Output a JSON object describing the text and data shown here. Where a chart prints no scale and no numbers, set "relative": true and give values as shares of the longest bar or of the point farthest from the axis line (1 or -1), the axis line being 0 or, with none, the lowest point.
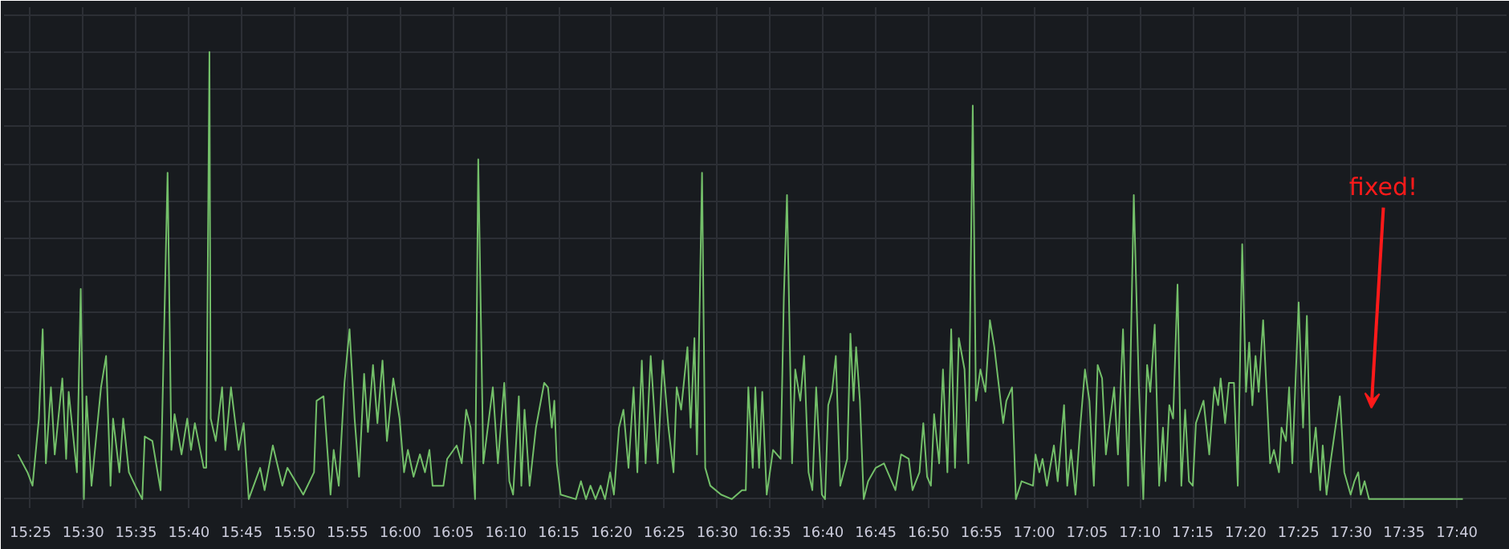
{
  "chart_data": {
    "type": "line",
    "relative": true,
    "grid": true,
    "marker": "none",
    "line_style": "solid",
    "xlim": [
      15.375,
      17.745
    ],
    "xticks": [
      {
        "value": 15.41667,
        "label": "15:25"
      },
      {
        "value": 15.5,
        "label": "15:30"
      },
      {
        "value": 15.58333,
        "label": "15:35"
      },
      {
        "value": 15.66667,
        "label": "15:40"
      },
      {
        "value": 15.75,
        "label": "15:45"
      },
      {
        "value": 15.83333,
        "label": "15:50"
      },
      {
        "value": 15.91667,
        "label": "15:55"
      },
      {
        "value": 16.0,
        "label": "16:00"
      },
      {
        "value": 16.08333,
        "label": "16:05"
      },
      {
        "value": 16.16667,
        "label": "16:10"
      },
      {
        "value": 16.25,
        "label": "16:15"
      },
      {
        "value": 16.33333,
        "label": "16:20"
      },
      {
        "value": 16.41667,
        "label": "16:25"
      },
      {
        "value": 16.5,
        "label": "16:30"
      },
      {
        "value": 16.58333,
        "label": "16:35"
      },
      {
        "value": 16.66667,
        "label": "16:40"
      },
      {
        "value": 16.75,
        "label": "16:45"
      },
      {
        "value": 16.83333,
        "label": "16:50"
      },
      {
        "value": 16.91667,
        "label": "16:55"
      },
      {
        "value": 17.0,
        "label": "17:00"
      },
      {
        "value": 17.08333,
        "label": "17:05"
      },
      {
        "value": 17.16667,
        "label": "17:10"
      },
      {
        "value": 17.25,
        "label": "17:15"
      },
      {
        "value": 17.33333,
        "label": "17:20"
      },
      {
        "value": 17.41667,
        "label": "17:25"
      },
      {
        "value": 17.5,
        "label": "17:30"
      },
      {
        "value": 17.58333,
        "label": "17:35"
      },
      {
        "value": 17.66667,
        "label": "17:40"
      }
    ],
    "annotations": [
      "fixed!"
    ],
    "series": [
      {
        "color": "#73bf69",
        "x": [
          15.397,
          15.412,
          15.42,
          15.43,
          15.436,
          15.441,
          15.449,
          15.455,
          15.467,
          15.473,
          15.477,
          15.49,
          15.496,
          15.501,
          15.505,
          15.513,
          15.528,
          15.536,
          15.543,
          15.547,
          15.557,
          15.563,
          15.572,
          15.582,
          15.593,
          15.597,
          15.609,
          15.622,
          15.633,
          15.639,
          15.644,
          15.655,
          15.664,
          15.67,
          15.676,
          15.69,
          15.694,
          15.699,
          15.701,
          15.709,
          15.719,
          15.724,
          15.733,
          15.745,
          15.753,
          15.761,
          15.779,
          15.786,
          15.799,
          15.814,
          15.822,
          15.847,
          15.864,
          15.868,
          15.879,
          15.89,
          15.895,
          15.903,
          15.912,
          15.92,
          15.928,
          15.935,
          15.943,
          15.949,
          15.957,
          15.964,
          15.972,
          15.979,
          15.989,
          15.999,
          16.006,
          16.012,
          16.021,
          16.031,
          16.039,
          16.046,
          16.051,
          16.068,
          16.074,
          16.089,
          16.097,
          16.104,
          16.111,
          16.118,
          16.123,
          16.131,
          16.146,
          16.154,
          16.164,
          16.172,
          16.178,
          16.187,
          16.191,
          16.196,
          16.204,
          16.214,
          16.227,
          16.233,
          16.239,
          16.243,
          16.247,
          16.253,
          16.277,
          16.285,
          16.293,
          16.3,
          16.308,
          16.316,
          16.323,
          16.331,
          16.337,
          16.345,
          16.352,
          16.36,
          16.368,
          16.374,
          16.381,
          16.387,
          16.395,
          16.406,
          16.414,
          16.423,
          16.431,
          16.436,
          16.443,
          16.453,
          16.458,
          16.464,
          16.468,
          16.476,
          16.481,
          16.489,
          16.506,
          16.523,
          16.539,
          16.545,
          16.549,
          16.556,
          16.56,
          16.566,
          16.571,
          16.578,
          16.588,
          16.6,
          16.605,
          16.61,
          16.618,
          16.623,
          16.631,
          16.637,
          16.644,
          16.65,
          16.656,
          16.665,
          16.67,
          16.675,
          16.681,
          16.687,
          16.694,
          16.705,
          16.71,
          16.715,
          16.719,
          16.725,
          16.731,
          16.738,
          16.75,
          16.763,
          16.781,
          16.79,
          16.802,
          16.808,
          16.819,
          16.825,
          16.831,
          16.837,
          16.842,
          16.85,
          16.856,
          16.863,
          16.869,
          16.875,
          16.881,
          16.89,
          16.896,
          16.903,
          16.908,
          16.915,
          16.923,
          16.93,
          16.937,
          16.951,
          16.956,
          16.965,
          16.971,
          16.98,
          16.998,
          17.002,
          17.008,
          17.013,
          17.02,
          17.031,
          17.037,
          17.047,
          17.052,
          17.058,
          17.065,
          17.073,
          17.08,
          17.087,
          17.094,
          17.1,
          17.107,
          17.113,
          17.119,
          17.126,
          17.132,
          17.14,
          17.148,
          17.157,
          17.165,
          17.172,
          17.178,
          17.183,
          17.19,
          17.197,
          17.203,
          17.207,
          17.213,
          17.219,
          17.226,
          17.232,
          17.238,
          17.244,
          17.25,
          17.255,
          17.267,
          17.276,
          17.284,
          17.29,
          17.294,
          17.301,
          17.307,
          17.315,
          17.321,
          17.328,
          17.334,
          17.339,
          17.344,
          17.349,
          17.354,
          17.361,
          17.372,
          17.378,
          17.386,
          17.39,
          17.397,
          17.402,
          17.407,
          17.417,
          17.424,
          17.43,
          17.436,
          17.444,
          17.451,
          17.455,
          17.461,
          17.467,
          17.482,
          17.489,
          17.499,
          17.505,
          17.511,
          17.515,
          17.521,
          17.528,
          17.676
        ],
        "values": [
          0.1,
          0.06,
          0.03,
          0.18,
          0.38,
          0.08,
          0.25,
          0.1,
          0.27,
          0.09,
          0.24,
          0.06,
          0.47,
          0.0,
          0.23,
          0.03,
          0.25,
          0.32,
          0.03,
          0.18,
          0.06,
          0.18,
          0.06,
          0.03,
          0.0,
          0.14,
          0.13,
          0.02,
          0.73,
          0.11,
          0.19,
          0.1,
          0.18,
          0.11,
          0.17,
          0.07,
          0.07,
          1.0,
          0.18,
          0.13,
          0.25,
          0.11,
          0.25,
          0.11,
          0.17,
          0.0,
          0.07,
          0.02,
          0.12,
          0.03,
          0.07,
          0.01,
          0.06,
          0.22,
          0.23,
          0.01,
          0.11,
          0.03,
          0.26,
          0.38,
          0.18,
          0.05,
          0.28,
          0.15,
          0.3,
          0.17,
          0.31,
          0.13,
          0.27,
          0.18,
          0.06,
          0.11,
          0.05,
          0.1,
          0.06,
          0.11,
          0.03,
          0.03,
          0.09,
          0.12,
          0.08,
          0.2,
          0.16,
          0.0,
          0.76,
          0.08,
          0.25,
          0.08,
          0.26,
          0.04,
          0.01,
          0.23,
          0.03,
          0.2,
          0.03,
          0.16,
          0.26,
          0.25,
          0.16,
          0.22,
          0.08,
          0.01,
          0.0,
          0.04,
          0.0,
          0.03,
          0.0,
          0.03,
          0.0,
          0.06,
          0.01,
          0.16,
          0.2,
          0.07,
          0.25,
          0.06,
          0.31,
          0.08,
          0.32,
          0.08,
          0.31,
          0.16,
          0.06,
          0.25,
          0.2,
          0.34,
          0.16,
          0.36,
          0.1,
          0.73,
          0.07,
          0.03,
          0.01,
          0.0,
          0.02,
          0.02,
          0.25,
          0.07,
          0.25,
          0.07,
          0.24,
          0.01,
          0.11,
          0.09,
          0.45,
          0.68,
          0.08,
          0.29,
          0.22,
          0.32,
          0.06,
          0.02,
          0.25,
          0.01,
          0.0,
          0.21,
          0.24,
          0.32,
          0.03,
          0.09,
          0.37,
          0.22,
          0.34,
          0.22,
          0.0,
          0.04,
          0.07,
          0.08,
          0.02,
          0.1,
          0.09,
          0.02,
          0.06,
          0.17,
          0.05,
          0.03,
          0.19,
          0.08,
          0.29,
          0.06,
          0.38,
          0.07,
          0.36,
          0.29,
          0.08,
          0.88,
          0.22,
          0.29,
          0.24,
          0.4,
          0.34,
          0.17,
          0.22,
          0.25,
          0.0,
          0.04,
          0.03,
          0.1,
          0.06,
          0.09,
          0.03,
          0.12,
          0.04,
          0.21,
          0.03,
          0.11,
          0.01,
          0.17,
          0.29,
          0.22,
          0.03,
          0.3,
          0.27,
          0.1,
          0.17,
          0.25,
          0.1,
          0.38,
          0.03,
          0.68,
          0.25,
          0.0,
          0.3,
          0.24,
          0.39,
          0.03,
          0.16,
          0.04,
          0.21,
          0.18,
          0.48,
          0.03,
          0.2,
          0.04,
          0.03,
          0.17,
          0.22,
          0.1,
          0.25,
          0.21,
          0.27,
          0.17,
          0.26,
          0.26,
          0.03,
          0.57,
          0.24,
          0.35,
          0.21,
          0.32,
          0.24,
          0.4,
          0.08,
          0.11,
          0.06,
          0.16,
          0.13,
          0.25,
          0.08,
          0.44,
          0.16,
          0.41,
          0.06,
          0.16,
          0.02,
          0.12,
          0.01,
          0.08,
          0.23,
          0.06,
          0.01,
          0.04,
          0.06,
          0.01,
          0.04,
          0.0,
          0.0
        ]
      }
    ]
  }
}
